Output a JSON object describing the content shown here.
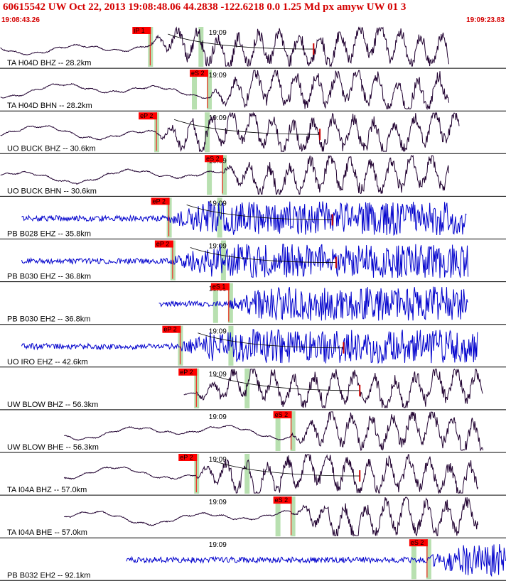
{
  "header": {
    "title": "60615542 UW Oct 22, 2013 19:08:48.06   44.2838 -122.6218  0.0 1.25 Md px amyw UW 01   3",
    "start_time": "19:08:43.26",
    "end_time": "19:09:23.83"
  },
  "colors": {
    "header_text": "#d40000",
    "pick_box": "#ff0000",
    "pick_window": "#b8e0b0",
    "trace_short_period": "#0000cc",
    "trace_broadband": "#200030",
    "coda_line": "#000000",
    "coda_marker": "#cc0000"
  },
  "chart_data": {
    "type": "line",
    "title": "60615542 UW Oct 22, 2013 19:08:48.06   44.2838 -122.6218  0.0 1.25 Md px amyw UW 01   3",
    "x_range": [
      "19:08:43.26",
      "19:09:23.83"
    ],
    "tick_label": "19:09",
    "tick_time": "19:09:00",
    "series": [
      {
        "name": "TA H04D BHZ -- 28.2km",
        "pick": "iP 1",
        "pick_time": "19:08:55.3",
        "start": "19:08:43.3",
        "end": "19:09:19.3",
        "kind": "bb",
        "coda": true
      },
      {
        "name": "TA H04D BHN -- 28.2km",
        "pick": "eS 2",
        "pick_time": "19:08:59.9",
        "start": "19:08:43.3",
        "end": "19:09:19.3",
        "kind": "bb",
        "coda": false
      },
      {
        "name": "UO BUCK BHZ -- 30.6km",
        "pick": "eP 2",
        "pick_time": "19:08:55.8",
        "start": "19:08:43.3",
        "end": "19:09:20.1",
        "kind": "bb",
        "coda": true
      },
      {
        "name": "UO BUCK BHN -- 30.6km",
        "pick": "eS 2",
        "pick_time": "19:09:01.1",
        "start": "19:08:43.3",
        "end": "19:09:19.3",
        "kind": "bb",
        "coda": false
      },
      {
        "name": "PB B028 EHZ -- 35.8km",
        "pick": "eP 2",
        "pick_time": "19:08:56.8",
        "start": "19:08:45.0",
        "end": "19:09:20.7",
        "kind": "sp",
        "coda": true
      },
      {
        "name": "PB B030 EHZ -- 36.8km",
        "pick": "eP 2",
        "pick_time": "19:08:57.1",
        "start": "19:08:45.0",
        "end": "19:09:20.8",
        "kind": "sp",
        "coda": true
      },
      {
        "name": "PB B030 EH2 -- 36.8km",
        "pick": "eS 1",
        "pick_time": "19:09:01.6",
        "start": "19:08:56.0",
        "end": "19:09:20.8",
        "kind": "sp",
        "coda": false
      },
      {
        "name": "UO IRO EHZ -- 42.6km",
        "pick": "eP 2",
        "pick_time": "19:08:57.7",
        "start": "19:08:45.0",
        "end": "19:09:21.6",
        "kind": "sp",
        "coda": true
      },
      {
        "name": "UW BLOW BHZ -- 56.3km",
        "pick": "eP 2",
        "pick_time": "19:08:59.0",
        "start": "19:08:58.0",
        "end": "19:09:22.0",
        "kind": "bb",
        "coda": true
      },
      {
        "name": "UW BLOW BHE -- 56.3km",
        "pick": "eS 2",
        "pick_time": "19:09:06.6",
        "start": "19:08:48.4",
        "end": "19:09:22.0",
        "kind": "bb",
        "coda": false
      },
      {
        "name": "TA I04A BHZ -- 57.0km",
        "pick": "eP 2",
        "pick_time": "19:08:59.0",
        "start": "19:08:48.4",
        "end": "19:09:21.6",
        "kind": "bb",
        "coda": true
      },
      {
        "name": "TA I04A BHE -- 57.0km",
        "pick": "eS 2",
        "pick_time": "19:09:06.6",
        "start": "19:08:48.4",
        "end": "19:09:21.6",
        "kind": "bb",
        "coda": false
      },
      {
        "name": "PB B032 EH2 -- 92.1km",
        "pick": "eS 2",
        "pick_time": "19:09:17.5",
        "start": "19:08:53.4",
        "end": "19:09:23.8",
        "kind": "sp",
        "coda": false
      }
    ]
  }
}
